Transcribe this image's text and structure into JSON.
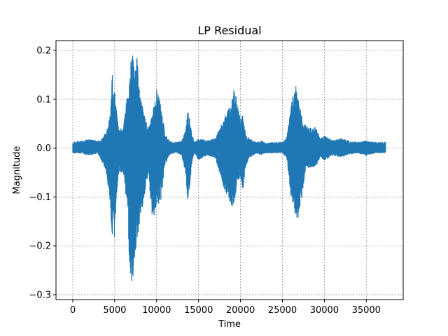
{
  "chart_data": {
    "type": "line",
    "title": "LP Residual",
    "xlabel": "Time",
    "ylabel": "Magnitude",
    "xlim": [
      -2000,
      39400
    ],
    "ylim": [
      -0.31,
      0.22
    ],
    "xticks": [
      0,
      5000,
      10000,
      15000,
      20000,
      25000,
      30000,
      35000
    ],
    "xtick_labels": [
      "0",
      "5000",
      "10000",
      "15000",
      "20000",
      "25000",
      "30000",
      "35000"
    ],
    "yticks": [
      0.2,
      0.1,
      0.0,
      -0.1,
      -0.2,
      -0.3
    ],
    "ytick_labels": [
      "0.2",
      "0.1",
      "0.0",
      "−0.1",
      "−0.2",
      "−0.3"
    ],
    "grid": true,
    "grid_style": "dashed",
    "line_color": "#1f77b4",
    "sample_count": 37300,
    "envelope_series": [
      {
        "name": "upper",
        "x": [
          0,
          1000,
          2000,
          3000,
          3500,
          4000,
          4500,
          4700,
          4800,
          5000,
          5200,
          5500,
          6000,
          6500,
          6800,
          7000,
          7200,
          7400,
          7600,
          8000,
          8500,
          9000,
          9500,
          10000,
          10500,
          11000,
          11500,
          12000,
          12500,
          13000,
          13500,
          13700,
          14000,
          14200,
          14500,
          15000,
          16000,
          17000,
          18000,
          18500,
          19000,
          19300,
          19600,
          20000,
          20300,
          20600,
          21000,
          21500,
          22000,
          22500,
          23000,
          24000,
          25000,
          25500,
          26000,
          26300,
          26600,
          27000,
          27400,
          27800,
          28500,
          29000,
          29500,
          30000,
          31000,
          32000,
          33000,
          34000,
          35000,
          36000,
          37300
        ],
        "y": [
          0.012,
          0.015,
          0.018,
          0.015,
          0.02,
          0.035,
          0.07,
          0.16,
          0.13,
          0.12,
          0.08,
          0.04,
          0.04,
          0.11,
          0.14,
          0.2,
          0.19,
          0.15,
          0.2,
          0.11,
          0.07,
          0.04,
          0.07,
          0.12,
          0.09,
          0.03,
          0.015,
          0.012,
          0.012,
          0.015,
          0.04,
          0.08,
          0.055,
          0.03,
          0.012,
          0.02,
          0.015,
          0.02,
          0.06,
          0.08,
          0.1,
          0.13,
          0.09,
          0.06,
          0.07,
          0.03,
          0.02,
          0.015,
          0.012,
          0.015,
          0.01,
          0.012,
          0.012,
          0.02,
          0.08,
          0.12,
          0.13,
          0.09,
          0.06,
          0.045,
          0.04,
          0.045,
          0.02,
          0.025,
          0.015,
          0.02,
          0.015,
          0.012,
          0.015,
          0.012,
          0.012
        ]
      },
      {
        "name": "lower",
        "x": [
          0,
          1000,
          2000,
          3000,
          3500,
          4000,
          4500,
          4700,
          4800,
          5000,
          5200,
          5500,
          6000,
          6500,
          6800,
          7000,
          7200,
          7400,
          7600,
          8000,
          8500,
          9000,
          9500,
          10000,
          10500,
          11000,
          11500,
          12000,
          12500,
          13000,
          13500,
          13700,
          14000,
          14200,
          14500,
          15000,
          16000,
          17000,
          18000,
          18500,
          19000,
          19300,
          19600,
          20000,
          20300,
          20600,
          21000,
          21500,
          22000,
          22500,
          23000,
          24000,
          25000,
          25500,
          26000,
          26300,
          26600,
          27000,
          27400,
          27800,
          28500,
          29000,
          29500,
          30000,
          31000,
          32000,
          33000,
          34000,
          35000,
          36000,
          37300
        ],
        "y": [
          -0.01,
          -0.01,
          -0.015,
          -0.01,
          -0.03,
          -0.05,
          -0.12,
          -0.2,
          -0.16,
          -0.19,
          -0.1,
          -0.05,
          -0.05,
          -0.12,
          -0.25,
          -0.28,
          -0.27,
          -0.22,
          -0.2,
          -0.15,
          -0.11,
          -0.05,
          -0.15,
          -0.12,
          -0.11,
          -0.035,
          -0.015,
          -0.01,
          -0.01,
          -0.015,
          -0.06,
          -0.11,
          -0.07,
          -0.03,
          -0.01,
          -0.025,
          -0.015,
          -0.02,
          -0.08,
          -0.1,
          -0.12,
          -0.11,
          -0.07,
          -0.06,
          -0.09,
          -0.04,
          -0.02,
          -0.015,
          -0.01,
          -0.015,
          -0.01,
          -0.01,
          -0.01,
          -0.02,
          -0.1,
          -0.12,
          -0.15,
          -0.14,
          -0.09,
          -0.04,
          -0.04,
          -0.035,
          -0.02,
          -0.025,
          -0.015,
          -0.018,
          -0.012,
          -0.01,
          -0.015,
          -0.01,
          -0.01
        ]
      }
    ]
  }
}
